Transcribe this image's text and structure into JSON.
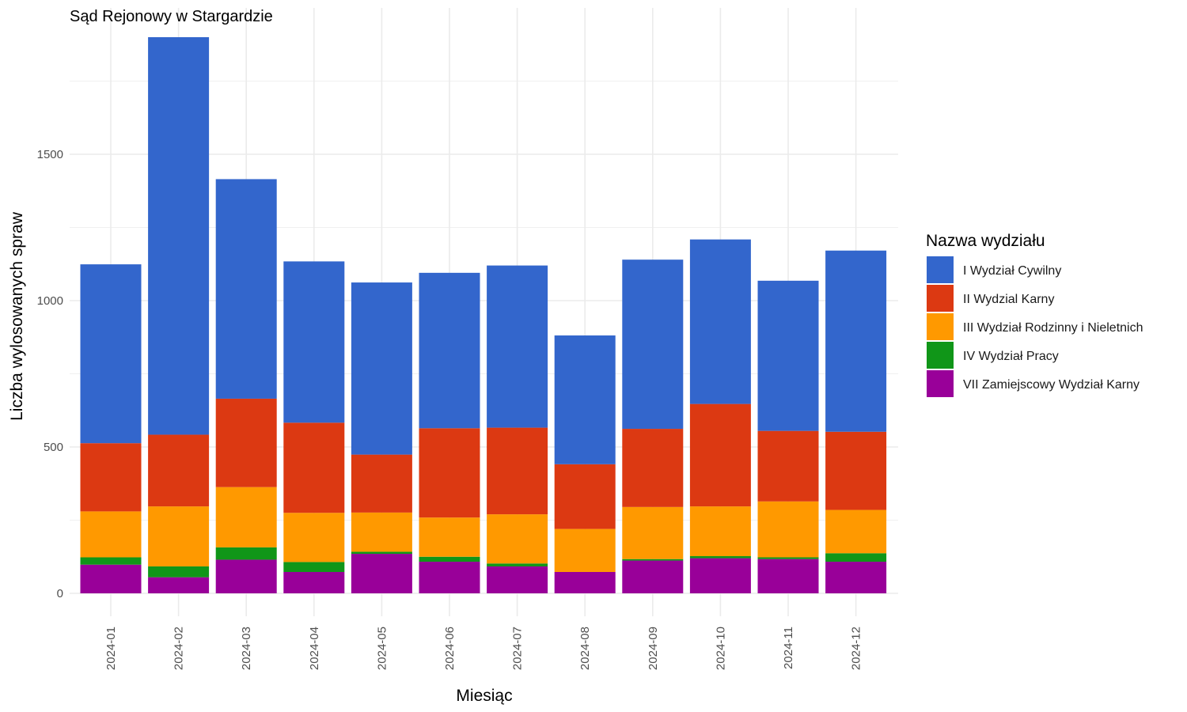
{
  "chart_data": {
    "type": "bar",
    "stacked": true,
    "title": "Sąd Rejonowy w Stargardzie",
    "xlabel": "Miesiąc",
    "ylabel": "Liczba wylosowanych spraw",
    "legend_title": "Nazwa wydziału",
    "legend_position": "right",
    "grid": true,
    "ylim": [
      0,
      1900
    ],
    "yticks": [
      0,
      500,
      1000,
      1500
    ],
    "categories": [
      "2024-01",
      "2024-02",
      "2024-03",
      "2024-04",
      "2024-05",
      "2024-06",
      "2024-07",
      "2024-08",
      "2024-09",
      "2024-10",
      "2024-11",
      "2024-12"
    ],
    "series": [
      {
        "name": "VII Zamiejscowy Wydział Karny",
        "color": "#990099",
        "values": [
          98,
          55,
          115,
          73,
          135,
          108,
          92,
          73,
          112,
          120,
          117,
          108
        ]
      },
      {
        "name": "IV Wydział Pracy",
        "color": "#109618",
        "values": [
          25,
          37,
          42,
          34,
          7,
          17,
          10,
          0,
          5,
          7,
          6,
          29
        ]
      },
      {
        "name": "III Wydział Rodzinny i Nieletnich",
        "color": "#FF9900",
        "values": [
          157,
          205,
          206,
          168,
          134,
          134,
          168,
          147,
          178,
          170,
          191,
          148
        ]
      },
      {
        "name": "II Wydzial Karny",
        "color": "#DC3912",
        "values": [
          233,
          245,
          302,
          308,
          198,
          305,
          296,
          221,
          267,
          350,
          241,
          267
        ]
      },
      {
        "name": "I Wydział Cywilny",
        "color": "#3366CC",
        "values": [
          611,
          1358,
          750,
          551,
          588,
          531,
          554,
          440,
          578,
          562,
          513,
          619
        ]
      }
    ]
  },
  "legend_order": [
    {
      "name": "I Wydział Cywilny",
      "color": "#3366CC"
    },
    {
      "name": "II Wydzial Karny",
      "color": "#DC3912"
    },
    {
      "name": "III Wydział Rodzinny i Nieletnich",
      "color": "#FF9900"
    },
    {
      "name": "IV Wydział Pracy",
      "color": "#109618"
    },
    {
      "name": "VII Zamiejscowy Wydział Karny",
      "color": "#990099"
    }
  ]
}
